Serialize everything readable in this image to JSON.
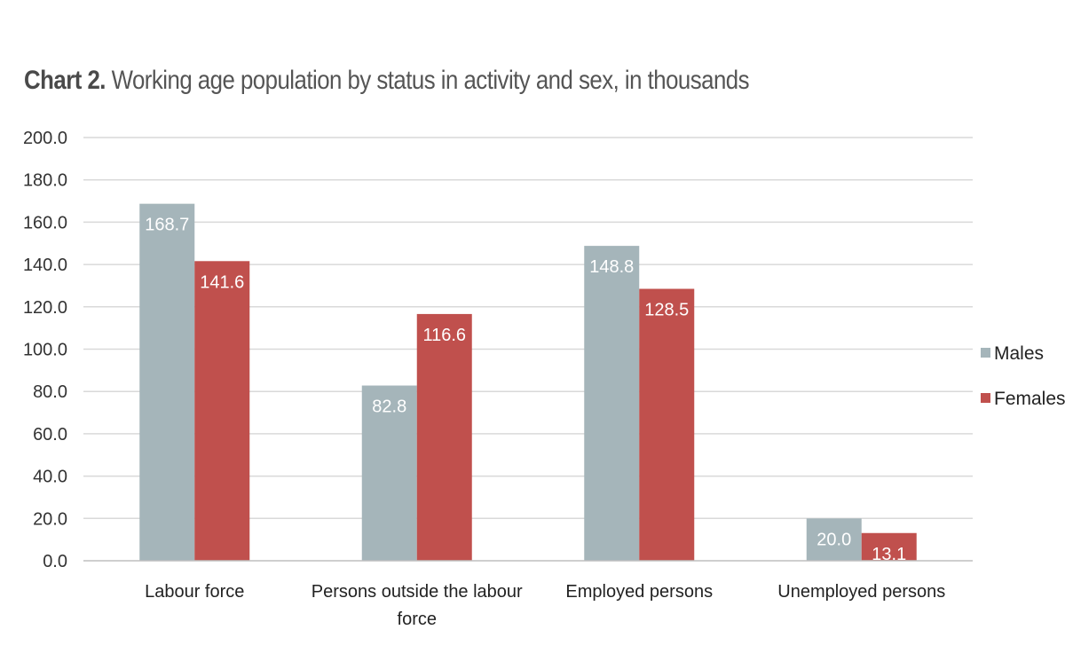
{
  "title": {
    "prefix": "Chart 2.",
    "text": "Working age population by status in activity and sex, in thousands"
  },
  "chart_data": {
    "type": "bar",
    "title": "Chart 2. Working age population by status in activity and sex, in thousands",
    "xlabel": "",
    "ylabel": "",
    "ylim": [
      0,
      200
    ],
    "ytick_step": 20,
    "ytick_labels": [
      "0.0",
      "20.0",
      "40.0",
      "60.0",
      "80.0",
      "100.0",
      "120.0",
      "140.0",
      "160.0",
      "180.0",
      "200.0"
    ],
    "grid": true,
    "legend_position": "right",
    "categories": [
      [
        "Labour force"
      ],
      [
        "Persons outside the labour",
        "force"
      ],
      [
        "Employed persons"
      ],
      [
        "Unemployed persons"
      ]
    ],
    "series": [
      {
        "name": "Males",
        "color": "#a5b5ba",
        "values": [
          168.7,
          82.8,
          148.8,
          20.0
        ],
        "labels": [
          "168.7",
          "82.8",
          "148.8",
          "20.0"
        ]
      },
      {
        "name": "Females",
        "color": "#c0504d",
        "values": [
          141.6,
          116.6,
          128.5,
          13.1
        ],
        "labels": [
          "141.6",
          "116.6",
          "128.5",
          "13.1"
        ]
      }
    ]
  }
}
